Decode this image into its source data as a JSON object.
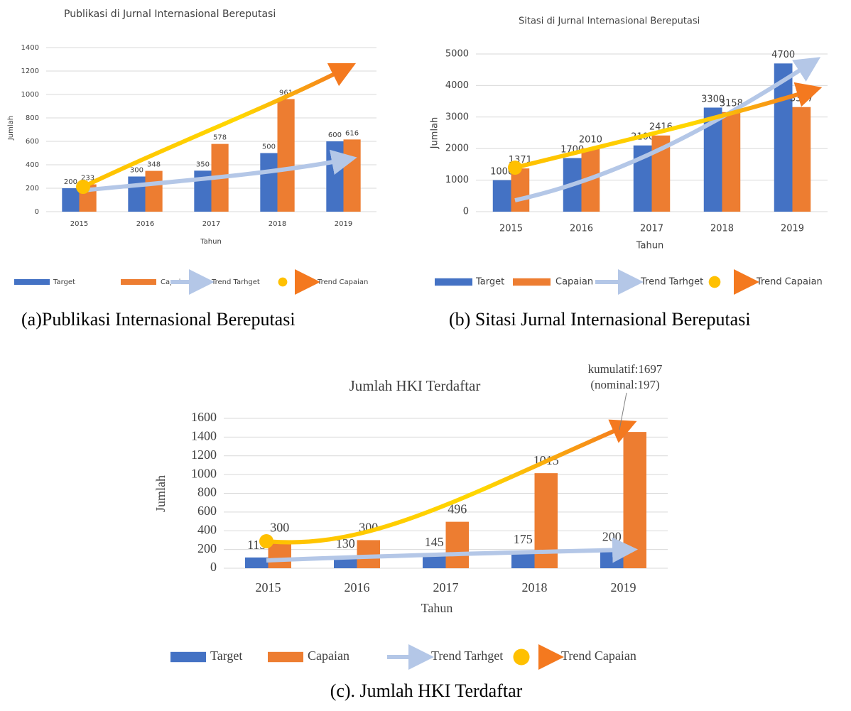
{
  "chart_data": [
    {
      "type": "bar",
      "title": "Publikasi di Jurnal Internasional Bereputasi",
      "caption": "(a)Publikasi Internasional Bereputasi",
      "x_label": "Tahun",
      "y_label": "Jumlah",
      "categories": [
        "2015",
        "2016",
        "2017",
        "2018",
        "2019"
      ],
      "series": [
        {
          "name": "Target",
          "color": "#4472c4",
          "values": [
            200,
            300,
            350,
            500,
            600
          ]
        },
        {
          "name": "Capaian",
          "color": "#ed7d31",
          "values": [
            233,
            348,
            578,
            961,
            616
          ]
        }
      ],
      "trends": [
        {
          "name": "Trend Tarhget",
          "color": "#b4c7e7"
        },
        {
          "name": "Trend Capaian",
          "color": "#ffc000"
        }
      ],
      "ylim": [
        0,
        1400
      ],
      "yticks": [
        0,
        200,
        400,
        600,
        800,
        1000,
        1200,
        1400
      ],
      "grid": true
    },
    {
      "type": "bar",
      "title": "Sitasi di Jurnal Internasional Bereputasi",
      "caption": "(b) Sitasi Jurnal Internasional Bereputasi",
      "x_label": "Tahun",
      "y_label": "Jumlah",
      "categories": [
        "2015",
        "2016",
        "2017",
        "2018",
        "2019"
      ],
      "series": [
        {
          "name": "Target",
          "color": "#4472c4",
          "values": [
            1000,
            1700,
            2100,
            3300,
            4700
          ]
        },
        {
          "name": "Capaian",
          "color": "#ed7d31",
          "values": [
            1371,
            2010,
            2416,
            3158,
            3317
          ]
        }
      ],
      "trends": [
        {
          "name": "Trend Tarhget",
          "color": "#b4c7e7"
        },
        {
          "name": "Trend Capaian",
          "color": "#ffc000"
        }
      ],
      "ylim": [
        0,
        5000
      ],
      "yticks": [
        0,
        1000,
        2000,
        3000,
        4000,
        5000
      ],
      "grid": true
    },
    {
      "type": "bar",
      "title": "Jumlah HKI Terdaftar",
      "caption": "(c). Jumlah HKI Terdaftar",
      "x_label": "Tahun",
      "y_label": "Jumlah",
      "categories": [
        "2015",
        "2016",
        "2017",
        "2018",
        "2019"
      ],
      "series": [
        {
          "name": "Target",
          "color": "#4472c4",
          "values": [
            115,
            130,
            145,
            175,
            200
          ]
        },
        {
          "name": "Capaian",
          "color": "#ed7d31",
          "values": [
            300,
            300,
            496,
            1015,
            1455
          ]
        }
      ],
      "series_labels_hidden": [
        [
          false,
          false,
          false,
          false,
          false
        ],
        [
          false,
          false,
          false,
          false,
          true
        ]
      ],
      "annotations": [
        "kumulatif:1697",
        "(nominal:197)"
      ],
      "trends": [
        {
          "name": "Trend Tarhget",
          "color": "#b4c7e7"
        },
        {
          "name": "Trend Capaian",
          "color": "#ffc000"
        }
      ],
      "ylim": [
        0,
        1600
      ],
      "yticks": [
        0,
        200,
        400,
        600,
        800,
        1000,
        1200,
        1400,
        1600
      ],
      "grid": true
    }
  ]
}
